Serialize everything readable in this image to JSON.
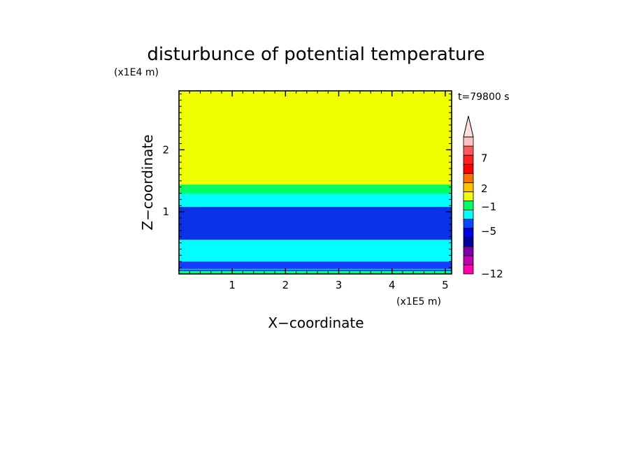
{
  "chart_data": {
    "type": "heatmap",
    "title": "disturbunce of potential temperature",
    "time_label": "t=79800 s",
    "xlabel": "X−coordinate",
    "ylabel": "Z−coordinate",
    "x_unit": "(x1E5 m)",
    "y_unit": "(x1E4 m)",
    "xlim": [
      0,
      5.12
    ],
    "ylim": [
      0,
      2.95
    ],
    "x_ticks": [
      1,
      2,
      3,
      4,
      5
    ],
    "y_ticks": [
      1,
      2
    ],
    "x_tick_labels": [
      "1",
      "2",
      "3",
      "4",
      "5"
    ],
    "y_tick_labels": [
      "1",
      "2"
    ],
    "layers": [
      {
        "z_from": 0.0,
        "z_to": 0.08,
        "color": "#00ff7f"
      },
      {
        "z_from": 0.08,
        "z_to": 0.2,
        "color": "#1a3cff"
      },
      {
        "z_from": 0.2,
        "z_to": 0.55,
        "color": "#00ffff"
      },
      {
        "z_from": 0.55,
        "z_to": 1.08,
        "color": "#0a32e6"
      },
      {
        "z_from": 1.08,
        "z_to": 1.29,
        "color": "#00ffff"
      },
      {
        "z_from": 1.29,
        "z_to": 1.44,
        "color": "#00ff66"
      },
      {
        "z_from": 1.44,
        "z_to": 2.95,
        "color": "#f0ff00"
      }
    ],
    "colorbar": {
      "colors": [
        "#ff00aa",
        "#c000b0",
        "#7a00a8",
        "#0000a0",
        "#0000e0",
        "#0a46ff",
        "#00ffff",
        "#00ff66",
        "#f0ff00",
        "#ffc000",
        "#ff7000",
        "#ff0000",
        "#ff2020",
        "#ff5a5a",
        "#ffc0c0"
      ],
      "extend_color": "#ffe0e0",
      "labels": [
        {
          "text": "7",
          "value": 7
        },
        {
          "text": "2",
          "value": 2
        },
        {
          "text": "−1",
          "value": -1
        },
        {
          "text": "−5",
          "value": -5
        },
        {
          "text": "−12",
          "value": -12
        }
      ]
    }
  }
}
